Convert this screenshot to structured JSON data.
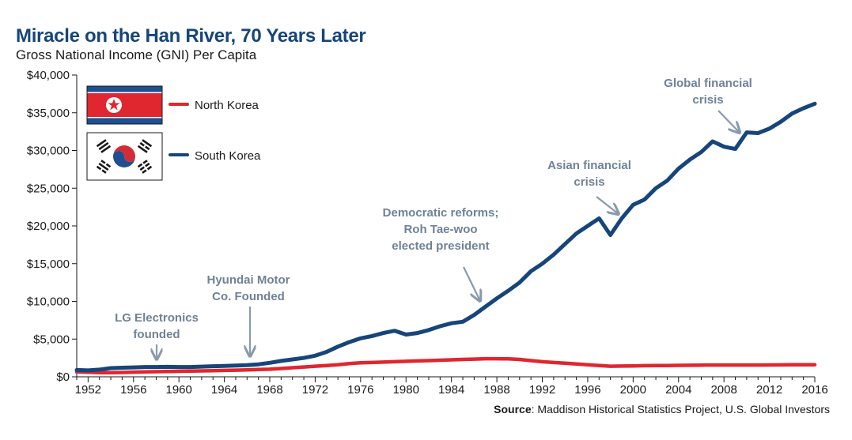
{
  "chart_data": {
    "type": "line",
    "title": "Miracle on the Han River, 70 Years Later",
    "subtitle": "Gross National Income (GNI) Per Capita",
    "xlabel": "",
    "ylabel": "",
    "xlim": [
      1951,
      2016
    ],
    "ylim": [
      0,
      40000
    ],
    "x_ticks": [
      1952,
      1956,
      1960,
      1964,
      1968,
      1972,
      1976,
      1980,
      1984,
      1988,
      1992,
      1996,
      2000,
      2004,
      2008,
      2012,
      2016
    ],
    "y_ticks": [
      {
        "value": 0,
        "label": "$0"
      },
      {
        "value": 5000,
        "label": "$5,000"
      },
      {
        "value": 10000,
        "label": "$10,000"
      },
      {
        "value": 15000,
        "label": "$15,000"
      },
      {
        "value": 20000,
        "label": "$20,000"
      },
      {
        "value": 25000,
        "label": "$25,000"
      },
      {
        "value": 30000,
        "label": "$30,000"
      },
      {
        "value": 35000,
        "label": "$35,000"
      },
      {
        "value": 40000,
        "label": "$40,000"
      }
    ],
    "grid": false,
    "legend_position": "top-left",
    "series": [
      {
        "name": "North Korea",
        "color": "#e0262f",
        "flag": "north-korea-flag",
        "x": [
          1951,
          1952,
          1953,
          1954,
          1955,
          1956,
          1957,
          1958,
          1959,
          1960,
          1961,
          1962,
          1963,
          1964,
          1965,
          1966,
          1967,
          1968,
          1969,
          1970,
          1971,
          1972,
          1973,
          1974,
          1975,
          1976,
          1977,
          1978,
          1979,
          1980,
          1981,
          1982,
          1983,
          1984,
          1985,
          1986,
          1987,
          1988,
          1989,
          1990,
          1991,
          1992,
          1993,
          1994,
          1995,
          1996,
          1997,
          1998,
          1999,
          2000,
          2001,
          2002,
          2003,
          2004,
          2005,
          2006,
          2007,
          2008,
          2009,
          2010,
          2011,
          2012,
          2013,
          2014,
          2015,
          2016
        ],
        "values": [
          650,
          600,
          550,
          560,
          580,
          620,
          650,
          680,
          700,
          730,
          760,
          790,
          820,
          850,
          880,
          920,
          960,
          1000,
          1100,
          1200,
          1300,
          1400,
          1500,
          1600,
          1750,
          1850,
          1900,
          1950,
          2000,
          2050,
          2100,
          2150,
          2200,
          2250,
          2300,
          2350,
          2400,
          2400,
          2380,
          2300,
          2150,
          2000,
          1900,
          1800,
          1700,
          1600,
          1500,
          1400,
          1420,
          1450,
          1480,
          1500,
          1500,
          1520,
          1530,
          1550,
          1560,
          1560,
          1560,
          1560,
          1560,
          1570,
          1580,
          1590,
          1600,
          1600
        ]
      },
      {
        "name": "South Korea",
        "color": "#16457a",
        "flag": "south-korea-flag",
        "x": [
          1951,
          1952,
          1953,
          1954,
          1955,
          1956,
          1957,
          1958,
          1959,
          1960,
          1961,
          1962,
          1963,
          1964,
          1965,
          1966,
          1967,
          1968,
          1969,
          1970,
          1971,
          1972,
          1973,
          1974,
          1975,
          1976,
          1977,
          1978,
          1979,
          1980,
          1981,
          1982,
          1983,
          1984,
          1985,
          1986,
          1987,
          1988,
          1989,
          1990,
          1991,
          1992,
          1993,
          1994,
          1995,
          1996,
          1997,
          1998,
          1999,
          2000,
          2001,
          2002,
          2003,
          2004,
          2005,
          2006,
          2007,
          2008,
          2009,
          2010,
          2011,
          2012,
          2013,
          2014,
          2015,
          2016
        ],
        "values": [
          900,
          850,
          950,
          1150,
          1200,
          1250,
          1300,
          1300,
          1320,
          1300,
          1300,
          1350,
          1400,
          1450,
          1500,
          1550,
          1650,
          1850,
          2100,
          2300,
          2500,
          2800,
          3300,
          4000,
          4600,
          5100,
          5400,
          5800,
          6100,
          5600,
          5800,
          6200,
          6700,
          7100,
          7300,
          8200,
          9300,
          10400,
          11400,
          12500,
          14000,
          15000,
          16200,
          17600,
          19000,
          20000,
          21000,
          18800,
          21000,
          22800,
          23500,
          25000,
          26000,
          27600,
          28800,
          29800,
          31200,
          30500,
          30200,
          32400,
          32300,
          32900,
          33800,
          34900,
          35600,
          36200
        ]
      }
    ],
    "annotations": [
      {
        "id": "lg",
        "lines": [
          "LG Electronics",
          "founded"
        ],
        "year": 1958,
        "value": 1500
      },
      {
        "id": "hyundai",
        "lines": [
          "Hyundai Motor",
          "Co. Founded"
        ],
        "year": 1966,
        "value": 1700
      },
      {
        "id": "democratic",
        "lines": [
          "Democratic reforms;",
          "Roh Tae-woo",
          "elected president"
        ],
        "year": 1986,
        "value": 9300
      },
      {
        "id": "asian",
        "lines": [
          "Asian financial",
          "crisis"
        ],
        "year": 1998,
        "value": 21200
      },
      {
        "id": "global",
        "lines": [
          "Global financial",
          "crisis"
        ],
        "year": 2009,
        "value": 31000
      }
    ]
  },
  "source": {
    "label": "Source",
    "text": ": Maddison Historical Statistics Project, U.S. Global Investors"
  }
}
